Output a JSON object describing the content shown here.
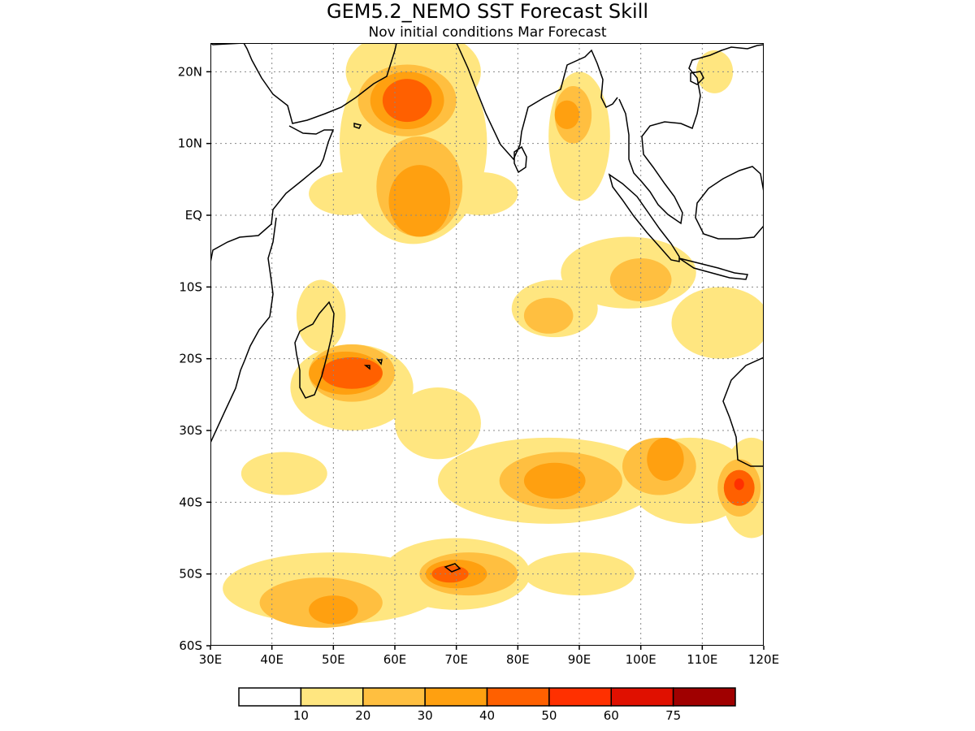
{
  "title": "GEM5.2_NEMO SST Forecast Skill",
  "subtitle": "Nov initial conditions  Mar Forecast",
  "map": {
    "lon_range": [
      30,
      120
    ],
    "lat_range": [
      -60,
      24
    ],
    "grid": "dotted",
    "lon_ticks": [
      {
        "value": 30,
        "label": "30E"
      },
      {
        "value": 40,
        "label": "40E"
      },
      {
        "value": 50,
        "label": "50E"
      },
      {
        "value": 60,
        "label": "60E"
      },
      {
        "value": 70,
        "label": "70E"
      },
      {
        "value": 80,
        "label": "80E"
      },
      {
        "value": 90,
        "label": "90E"
      },
      {
        "value": 100,
        "label": "100E"
      },
      {
        "value": 110,
        "label": "110E"
      },
      {
        "value": 120,
        "label": "120E"
      }
    ],
    "lat_ticks": [
      {
        "value": 20,
        "label": "20N"
      },
      {
        "value": 10,
        "label": "10N"
      },
      {
        "value": 0,
        "label": "EQ"
      },
      {
        "value": -10,
        "label": "10S"
      },
      {
        "value": -20,
        "label": "20S"
      },
      {
        "value": -30,
        "label": "30S"
      },
      {
        "value": -40,
        "label": "40S"
      },
      {
        "value": -50,
        "label": "50S"
      },
      {
        "value": -60,
        "label": "60S"
      }
    ]
  },
  "colorbar": {
    "colors": [
      "#ffffff",
      "#ffe680",
      "#ffbf40",
      "#ffa010",
      "#ff6000",
      "#ff3000",
      "#e01000",
      "#a00000"
    ],
    "labels": [
      "10",
      "20",
      "30",
      "40",
      "50",
      "60",
      "75"
    ]
  },
  "shading": {
    "levels": [
      {
        "level": 1,
        "color": "#ffe680",
        "regions": [
          {
            "lon": 63,
            "lat": 10,
            "rx": 12,
            "ry": 14
          },
          {
            "lon": 63,
            "lat": 20,
            "rx": 11,
            "ry": 6
          },
          {
            "lon": 52,
            "lat": 3,
            "rx": 6,
            "ry": 3
          },
          {
            "lon": 74,
            "lat": 3,
            "rx": 6,
            "ry": 3
          },
          {
            "lon": 90,
            "lat": 11,
            "rx": 5,
            "ry": 9
          },
          {
            "lon": 98,
            "lat": -8,
            "rx": 11,
            "ry": 5
          },
          {
            "lon": 86,
            "lat": -13,
            "rx": 7,
            "ry": 4
          },
          {
            "lon": 113,
            "lat": -15,
            "rx": 8,
            "ry": 5
          },
          {
            "lon": 48,
            "lat": -14,
            "rx": 4,
            "ry": 5
          },
          {
            "lon": 53,
            "lat": -24,
            "rx": 10,
            "ry": 6
          },
          {
            "lon": 67,
            "lat": -29,
            "rx": 7,
            "ry": 5
          },
          {
            "lon": 85,
            "lat": -37,
            "rx": 18,
            "ry": 6
          },
          {
            "lon": 108,
            "lat": -37,
            "rx": 10,
            "ry": 6
          },
          {
            "lon": 118,
            "lat": -38,
            "rx": 5,
            "ry": 7
          },
          {
            "lon": 42,
            "lat": -36,
            "rx": 7,
            "ry": 3
          },
          {
            "lon": 50,
            "lat": -52,
            "rx": 18,
            "ry": 5
          },
          {
            "lon": 70,
            "lat": -50,
            "rx": 12,
            "ry": 5
          },
          {
            "lon": 90,
            "lat": -50,
            "rx": 9,
            "ry": 3
          },
          {
            "lon": 112,
            "lat": 20,
            "rx": 3,
            "ry": 3
          }
        ]
      },
      {
        "level": 2,
        "color": "#ffbf40",
        "regions": [
          {
            "lon": 64,
            "lat": 4,
            "rx": 7,
            "ry": 7
          },
          {
            "lon": 62,
            "lat": 16,
            "rx": 8,
            "ry": 5
          },
          {
            "lon": 89,
            "lat": 14,
            "rx": 3,
            "ry": 4
          },
          {
            "lon": 100,
            "lat": -9,
            "rx": 5,
            "ry": 3
          },
          {
            "lon": 85,
            "lat": -14,
            "rx": 4,
            "ry": 2.5
          },
          {
            "lon": 53,
            "lat": -22,
            "rx": 7,
            "ry": 4
          },
          {
            "lon": 87,
            "lat": -37,
            "rx": 10,
            "ry": 4
          },
          {
            "lon": 103,
            "lat": -35,
            "rx": 6,
            "ry": 4
          },
          {
            "lon": 116,
            "lat": -38,
            "rx": 3.5,
            "ry": 4
          },
          {
            "lon": 72,
            "lat": -50,
            "rx": 8,
            "ry": 3
          },
          {
            "lon": 48,
            "lat": -54,
            "rx": 10,
            "ry": 3.5
          }
        ]
      },
      {
        "level": 3,
        "color": "#ffa010",
        "regions": [
          {
            "lon": 64,
            "lat": 2,
            "rx": 5,
            "ry": 5
          },
          {
            "lon": 62,
            "lat": 16,
            "rx": 6,
            "ry": 4
          },
          {
            "lon": 88,
            "lat": 14,
            "rx": 2,
            "ry": 2
          },
          {
            "lon": 52,
            "lat": -22,
            "rx": 6,
            "ry": 3
          },
          {
            "lon": 86,
            "lat": -37,
            "rx": 5,
            "ry": 2.5
          },
          {
            "lon": 104,
            "lat": -34,
            "rx": 3,
            "ry": 3
          },
          {
            "lon": 70,
            "lat": -50,
            "rx": 5,
            "ry": 2
          },
          {
            "lon": 50,
            "lat": -55,
            "rx": 4,
            "ry": 2
          }
        ]
      },
      {
        "level": 4,
        "color": "#ff6000",
        "regions": [
          {
            "lon": 62,
            "lat": 16,
            "rx": 4,
            "ry": 3
          },
          {
            "lon": 53,
            "lat": -22,
            "rx": 5,
            "ry": 2.2
          },
          {
            "lon": 116,
            "lat": -38,
            "rx": 2.5,
            "ry": 2.5
          },
          {
            "lon": 69,
            "lat": -50,
            "rx": 3,
            "ry": 1.2
          }
        ]
      },
      {
        "level": 5,
        "color": "#ff3000",
        "regions": [
          {
            "lon": 116,
            "lat": -37.5,
            "rx": 0.8,
            "ry": 0.8
          }
        ]
      }
    ]
  }
}
